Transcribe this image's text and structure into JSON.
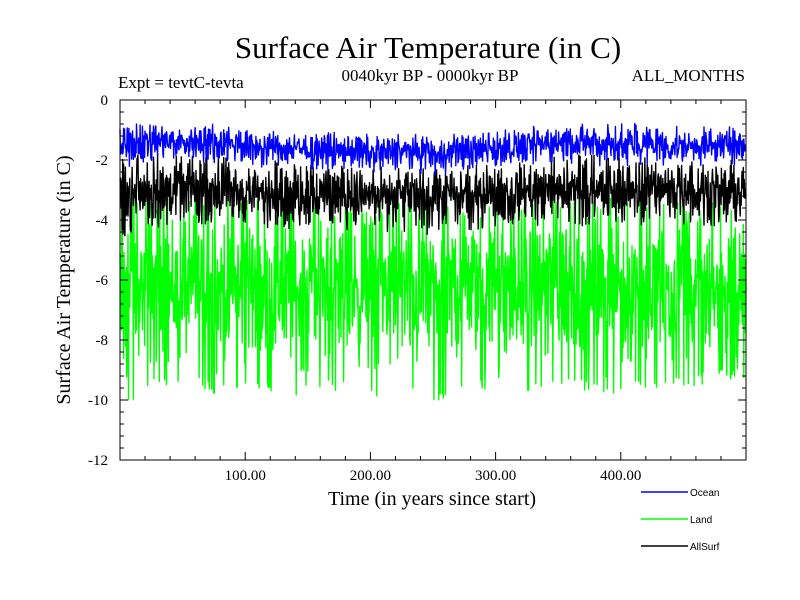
{
  "chart_data": {
    "type": "line",
    "title": "Surface Air Temperature (in C)",
    "expt_label": "Expt = tevtC-tevta",
    "period_label": "0040kyr BP - 0000kyr BP",
    "months_label": "ALL_MONTHS",
    "xlabel": "Time (in years since start)",
    "ylabel": "Surface Air Temperature (in C)",
    "xlim": [
      0,
      500
    ],
    "ylim": [
      -12,
      0
    ],
    "x_ticks": [
      100,
      200,
      300,
      400
    ],
    "x_tick_labels": [
      "100.00",
      "200.00",
      "300.00",
      "400.00"
    ],
    "y_ticks": [
      0,
      -2,
      -4,
      -6,
      -8,
      -10,
      -12
    ],
    "y_tick_labels": [
      "0",
      "-2",
      "-4",
      "-6",
      "-8",
      "-10",
      "-12"
    ],
    "legend_position": "bottom-right",
    "series": [
      {
        "name": "Land",
        "color": "#00ff00",
        "x": [
          0,
          25,
          50,
          75,
          100,
          125,
          150,
          175,
          200,
          225,
          250,
          275,
          300,
          325,
          350,
          375,
          400,
          425,
          450,
          475,
          500
        ],
        "mean": [
          -6.3,
          -6.2,
          -6.3,
          -6.3,
          -6.2,
          -6.3,
          -6.3,
          -6.2,
          -6.3,
          -6.3,
          -6.3,
          -6.2,
          -6.3,
          -6.3,
          -6.2,
          -6.3,
          -6.3,
          -6.2,
          -6.3,
          -6.3,
          -6.3
        ],
        "min": [
          -10.4,
          -9.7,
          -9.5,
          -9.8,
          -9.8,
          -9.9,
          -9.8,
          -9.7,
          -9.9,
          -9.8,
          -10.2,
          -9.7,
          -9.6,
          -9.8,
          -9.6,
          -9.7,
          -9.9,
          -9.6,
          -9.6,
          -9.4,
          -9.3
        ],
        "max": [
          -3.1,
          -3.3,
          -3.2,
          -3.2,
          -3.3,
          -3.3,
          -3.3,
          -3.4,
          -3.5,
          -3.4,
          -3.5,
          -3.6,
          -3.5,
          -3.3,
          -3.2,
          -3.3,
          -3.2,
          -3.2,
          -3.4,
          -3.3,
          -3.3
        ]
      },
      {
        "name": "AllSurf",
        "color": "#000000",
        "x": [
          0,
          25,
          50,
          75,
          100,
          125,
          150,
          175,
          200,
          225,
          250,
          275,
          300,
          325,
          350,
          375,
          400,
          425,
          450,
          475,
          500
        ],
        "mean": [
          -3.1,
          -3.0,
          -3.0,
          -3.0,
          -3.1,
          -3.1,
          -3.1,
          -3.1,
          -3.2,
          -3.2,
          -3.2,
          -3.2,
          -3.1,
          -3.0,
          -3.0,
          -3.0,
          -3.0,
          -3.0,
          -3.0,
          -3.0,
          -3.0
        ],
        "min": [
          -4.6,
          -4.3,
          -4.2,
          -4.2,
          -4.3,
          -4.3,
          -4.4,
          -4.3,
          -4.4,
          -4.4,
          -4.5,
          -4.4,
          -4.3,
          -4.2,
          -4.2,
          -4.2,
          -4.2,
          -4.2,
          -4.2,
          -4.2,
          -4.2
        ],
        "max": [
          -2.0,
          -1.7,
          -1.8,
          -1.8,
          -2.0,
          -2.0,
          -2.1,
          -2.1,
          -2.2,
          -2.3,
          -2.3,
          -2.2,
          -2.1,
          -1.9,
          -1.8,
          -1.8,
          -1.7,
          -1.8,
          -1.9,
          -1.9,
          -1.9
        ]
      },
      {
        "name": "Ocean",
        "color": "#0000ff",
        "x": [
          0,
          25,
          50,
          75,
          100,
          125,
          150,
          175,
          200,
          225,
          250,
          275,
          300,
          325,
          350,
          375,
          400,
          425,
          450,
          475,
          500
        ],
        "mean": [
          -1.6,
          -1.4,
          -1.4,
          -1.4,
          -1.5,
          -1.6,
          -1.6,
          -1.7,
          -1.7,
          -1.7,
          -1.8,
          -1.7,
          -1.6,
          -1.5,
          -1.4,
          -1.5,
          -1.5,
          -1.5,
          -1.5,
          -1.5,
          -1.5
        ],
        "min": [
          -2.3,
          -2.1,
          -2.1,
          -2.1,
          -2.2,
          -2.3,
          -2.3,
          -2.4,
          -2.4,
          -2.4,
          -2.5,
          -2.4,
          -2.3,
          -2.2,
          -2.1,
          -2.2,
          -2.2,
          -2.2,
          -2.2,
          -2.2,
          -2.2
        ],
        "max": [
          -0.9,
          -0.7,
          -0.8,
          -0.8,
          -0.9,
          -1.0,
          -1.0,
          -1.1,
          -1.1,
          -1.1,
          -1.2,
          -1.1,
          -1.0,
          -0.9,
          -0.8,
          -0.8,
          -0.6,
          -0.8,
          -0.9,
          -0.9,
          -0.9
        ]
      }
    ]
  }
}
